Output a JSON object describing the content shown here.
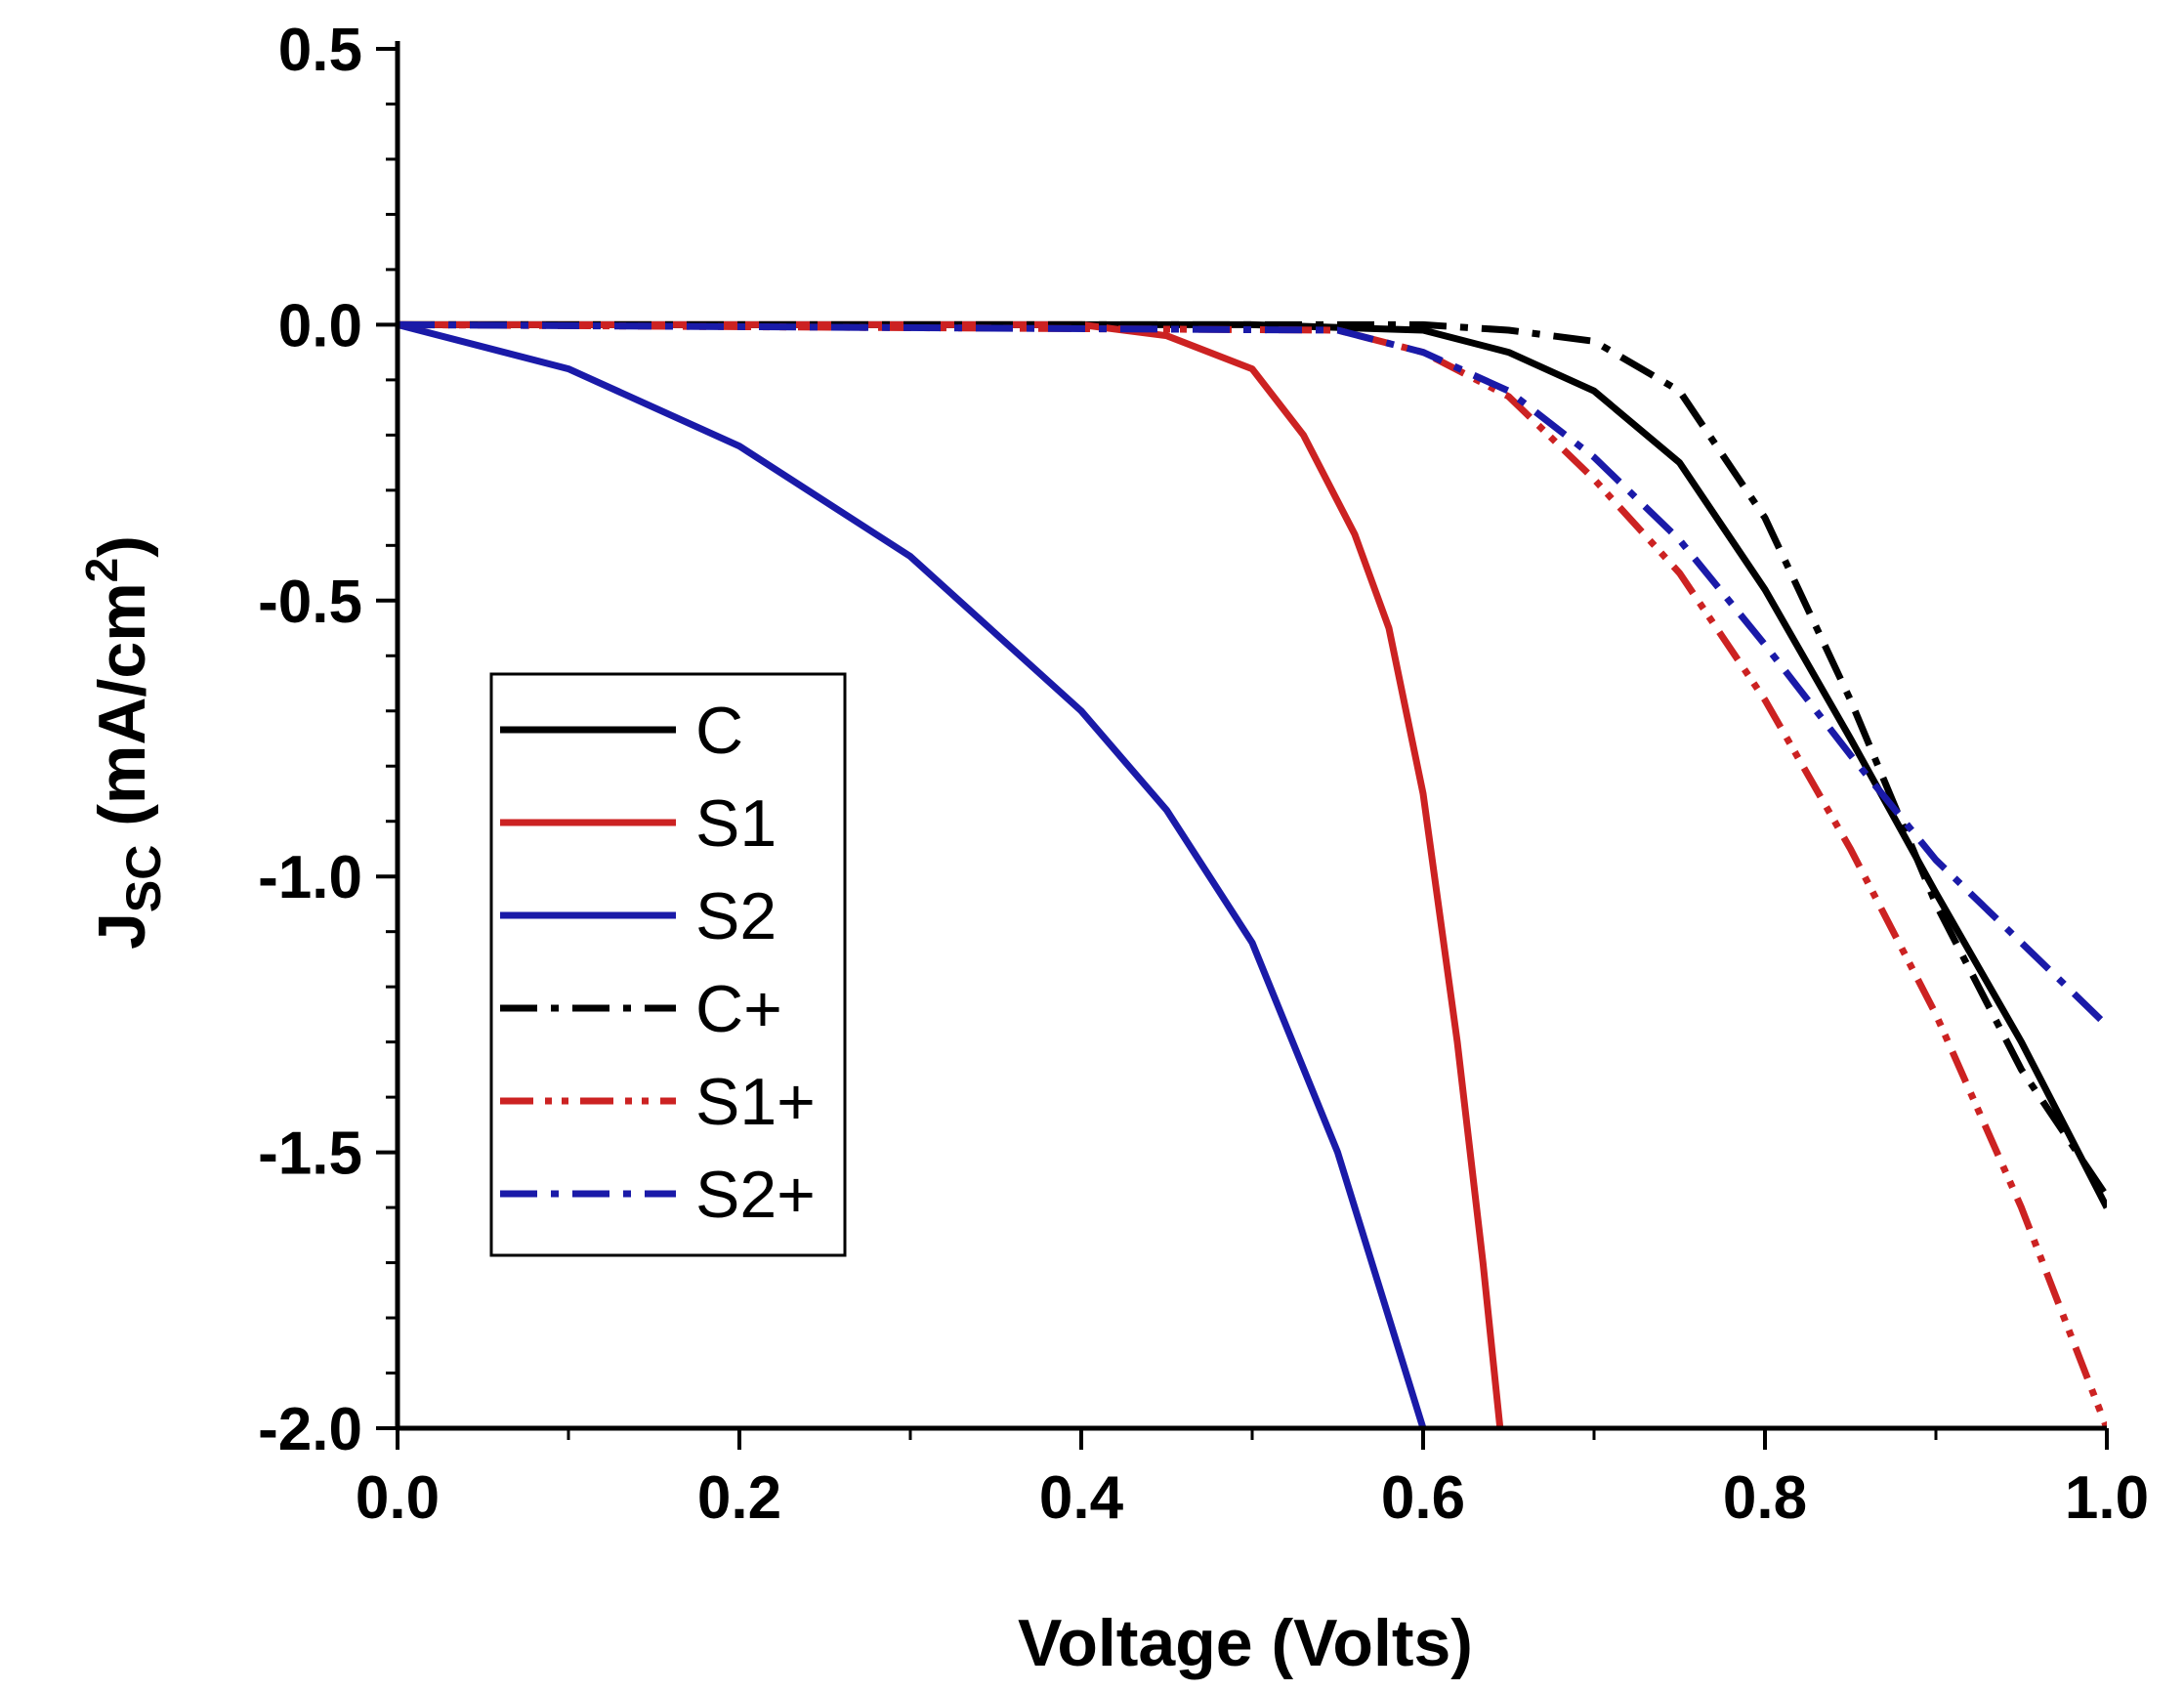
{
  "chart_data": {
    "type": "line",
    "title": "",
    "xlabel": "Voltage (Volts)",
    "ylabel": "J",
    "ylabel_sub": "SC",
    "ylabel_unit": " (mA/cm",
    "ylabel_sup": "2",
    "ylabel_close": ")",
    "xlim": [
      0.0,
      1.0
    ],
    "ylim": [
      -2.0,
      0.5
    ],
    "x_ticks": [
      0.0,
      0.2,
      0.4,
      0.6,
      0.8,
      1.0
    ],
    "x_tick_labels": [
      "0.0",
      "0.2",
      "0.4",
      "0.6",
      "0.8",
      "1.0"
    ],
    "y_ticks": [
      0.5,
      0.0,
      -0.5,
      -1.0,
      -1.5,
      -2.0
    ],
    "y_tick_labels": [
      "0.5",
      "0.0",
      "-0.5",
      "-1.0",
      "-1.5",
      "-2.0"
    ],
    "grid": false,
    "legend_position": "center-left",
    "series": [
      {
        "name": "C",
        "color": "#000000",
        "style": "solid",
        "x": [
          0.0,
          0.5,
          0.6,
          0.65,
          0.7,
          0.75,
          0.8,
          0.85,
          0.9,
          0.95,
          1.0
        ],
        "y": [
          0.0,
          0.0,
          -0.01,
          -0.05,
          -0.12,
          -0.25,
          -0.48,
          -0.75,
          -1.03,
          -1.3,
          -1.6
        ]
      },
      {
        "name": "S1",
        "color": "#cc2222",
        "style": "solid",
        "x": [
          0.0,
          0.4,
          0.45,
          0.5,
          0.53,
          0.56,
          0.58,
          0.6,
          0.62,
          0.635,
          0.645
        ],
        "y": [
          0.0,
          0.0,
          -0.02,
          -0.08,
          -0.2,
          -0.38,
          -0.55,
          -0.85,
          -1.3,
          -1.7,
          -2.0
        ]
      },
      {
        "name": "S2",
        "color": "#1a1aa8",
        "style": "solid",
        "x": [
          0.0,
          0.1,
          0.2,
          0.3,
          0.4,
          0.45,
          0.5,
          0.55,
          0.6
        ],
        "y": [
          0.0,
          -0.08,
          -0.22,
          -0.42,
          -0.7,
          -0.88,
          -1.12,
          -1.5,
          -2.0
        ]
      },
      {
        "name": "C+",
        "color": "#000000",
        "style": "dashdot",
        "x": [
          0.0,
          0.55,
          0.6,
          0.65,
          0.7,
          0.75,
          0.8,
          0.85,
          0.9,
          0.95,
          1.0
        ],
        "y": [
          0.0,
          0.0,
          0.0,
          -0.01,
          -0.03,
          -0.12,
          -0.35,
          -0.68,
          -1.05,
          -1.35,
          -1.58
        ]
      },
      {
        "name": "S1+",
        "color": "#cc2222",
        "style": "dashdotdot",
        "x": [
          0.0,
          0.55,
          0.6,
          0.65,
          0.7,
          0.75,
          0.8,
          0.85,
          0.9,
          0.95,
          1.0
        ],
        "y": [
          0.0,
          -0.01,
          -0.05,
          -0.13,
          -0.28,
          -0.45,
          -0.68,
          -0.95,
          -1.25,
          -1.6,
          -2.0
        ]
      },
      {
        "name": "S2+",
        "color": "#1a1aa8",
        "style": "dashdot",
        "x": [
          0.0,
          0.55,
          0.6,
          0.65,
          0.7,
          0.75,
          0.8,
          0.85,
          0.9,
          0.95,
          1.0
        ],
        "y": [
          0.0,
          -0.01,
          -0.05,
          -0.12,
          -0.24,
          -0.39,
          -0.58,
          -0.78,
          -0.97,
          -1.12,
          -1.27
        ]
      }
    ]
  }
}
